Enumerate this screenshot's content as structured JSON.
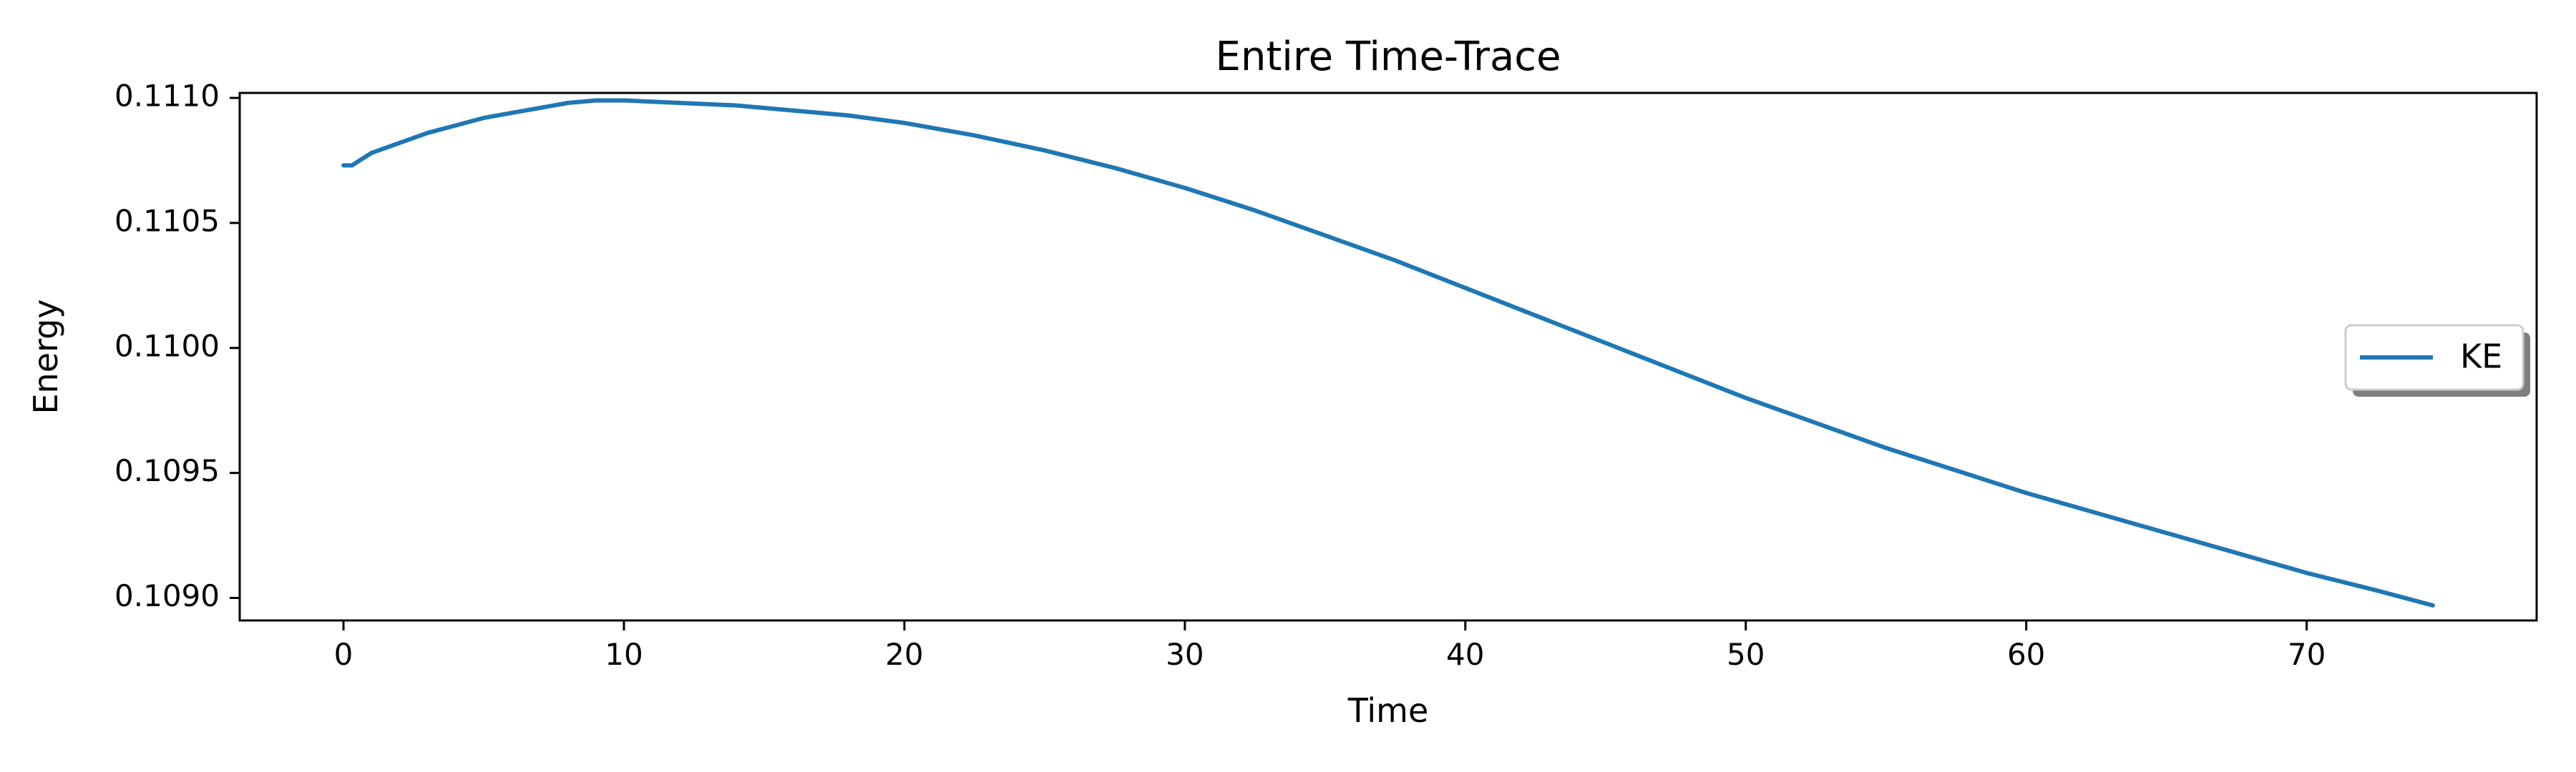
{
  "chart_data": {
    "type": "line",
    "title": "Entire Time-Trace",
    "xlabel": "Time",
    "ylabel": "Energy",
    "xlim": [
      -3.7,
      78.2
    ],
    "ylim": [
      0.10891,
      0.11102
    ],
    "xticks": [
      0,
      10,
      20,
      30,
      40,
      50,
      60,
      70
    ],
    "xtick_labels": [
      "0",
      "10",
      "20",
      "30",
      "40",
      "50",
      "60",
      "70"
    ],
    "yticks": [
      0.109,
      0.1095,
      0.11,
      0.1105,
      0.111
    ],
    "ytick_labels": [
      "0.1090",
      "0.1095",
      "0.1100",
      "0.1105",
      "0.1110"
    ],
    "grid": false,
    "legend_position": "center-right",
    "series": [
      {
        "name": "KE",
        "color": "#1f77b4",
        "x": [
          0,
          0.3,
          1,
          2,
          3,
          4,
          5,
          6,
          7,
          8,
          9,
          10,
          12,
          14,
          16,
          18,
          20,
          22.5,
          25,
          27.5,
          30,
          32.5,
          35,
          37.5,
          40,
          42.5,
          45,
          47.5,
          50,
          52.5,
          55,
          57.5,
          60,
          62.5,
          65,
          67.5,
          70,
          72.5,
          74.5
        ],
        "y": [
          0.11073,
          0.11073,
          0.11078,
          0.11082,
          0.11086,
          0.11089,
          0.11092,
          0.11094,
          0.11096,
          0.11098,
          0.11099,
          0.11099,
          0.11098,
          0.11097,
          0.11095,
          0.11093,
          0.1109,
          0.11085,
          0.11079,
          0.11072,
          0.11064,
          0.11055,
          0.11045,
          0.11035,
          0.11024,
          0.11013,
          0.11002,
          0.10991,
          0.1098,
          0.1097,
          0.1096,
          0.10951,
          0.10942,
          0.10934,
          0.10926,
          0.10918,
          0.1091,
          0.10903,
          0.10897
        ]
      }
    ]
  }
}
